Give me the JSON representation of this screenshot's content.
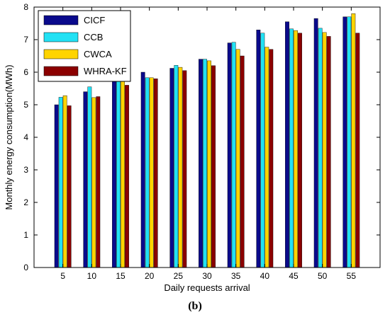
{
  "chart_data": {
    "type": "bar",
    "categories": [
      "5",
      "10",
      "15",
      "20",
      "25",
      "30",
      "35",
      "40",
      "45",
      "50",
      "55"
    ],
    "series": [
      {
        "name": "CICF",
        "color": "#0a0a8c",
        "values": [
          5.0,
          5.4,
          5.8,
          6.0,
          6.12,
          6.4,
          6.9,
          7.3,
          7.55,
          7.65,
          7.7
        ]
      },
      {
        "name": "CCB",
        "color": "#22e1f4",
        "values": [
          5.23,
          5.55,
          5.77,
          5.83,
          6.21,
          6.4,
          6.92,
          7.2,
          7.33,
          7.35,
          7.7
        ]
      },
      {
        "name": "CWCA",
        "color": "#ffd400",
        "values": [
          5.28,
          5.22,
          5.77,
          5.83,
          6.15,
          6.35,
          6.7,
          6.77,
          7.28,
          7.22,
          7.8
        ]
      },
      {
        "name": "WHRA-KF",
        "color": "#8b0000",
        "values": [
          4.97,
          5.25,
          5.6,
          5.8,
          6.05,
          6.2,
          6.5,
          6.7,
          7.2,
          7.1,
          7.2
        ]
      }
    ],
    "xlabel": "Daily requests arrival",
    "ylabel": "Monthly energy consumption(MWh)",
    "ylim": [
      0,
      8
    ],
    "yticks": [
      "0",
      "1",
      "2",
      "3",
      "4",
      "5",
      "6",
      "7",
      "8"
    ],
    "grid": false,
    "legend_position": "top-left"
  },
  "caption": "(b)"
}
